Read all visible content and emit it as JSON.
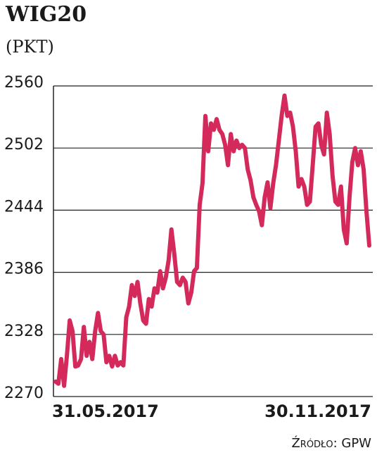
{
  "chart_data": {
    "type": "line",
    "title": "WIG20",
    "subtitle": "(PKT)",
    "source": "Źródło: GPW",
    "categories": [
      "31.05.2017",
      null,
      null,
      null,
      null,
      null,
      null,
      null,
      null,
      null,
      null,
      null,
      null,
      null,
      null,
      null,
      null,
      null,
      null,
      null,
      null,
      null,
      null,
      null,
      null,
      null,
      null,
      null,
      null,
      null,
      null,
      null,
      null,
      null,
      null,
      null,
      null,
      null,
      null,
      null,
      null,
      null,
      null,
      null,
      null,
      null,
      null,
      null,
      null,
      null,
      null,
      null,
      null,
      null,
      null,
      null,
      null,
      null,
      null,
      null,
      null,
      null,
      null,
      null,
      null,
      null,
      null,
      null,
      null,
      null,
      null,
      null,
      null,
      null,
      null,
      null,
      null,
      null,
      null,
      null,
      null,
      null,
      null,
      null,
      null,
      null,
      null,
      null,
      null,
      null,
      null,
      null,
      null,
      null,
      null,
      null,
      null,
      null,
      null,
      null,
      null,
      null,
      null,
      null,
      null,
      null,
      null,
      null,
      null,
      null,
      null,
      "30.11.2017"
    ],
    "values": [
      2284,
      2282,
      2305,
      2280,
      2308,
      2341,
      2331,
      2298,
      2299,
      2305,
      2335,
      2308,
      2321,
      2305,
      2331,
      2348,
      2331,
      2328,
      2302,
      2308,
      2298,
      2308,
      2299,
      2302,
      2299,
      2344,
      2354,
      2374,
      2364,
      2377,
      2357,
      2341,
      2338,
      2361,
      2354,
      2371,
      2367,
      2387,
      2371,
      2381,
      2397,
      2426,
      2403,
      2377,
      2374,
      2381,
      2377,
      2357,
      2367,
      2387,
      2390,
      2449,
      2469,
      2532,
      2499,
      2525,
      2519,
      2529,
      2519,
      2515,
      2505,
      2486,
      2515,
      2499,
      2509,
      2502,
      2505,
      2502,
      2482,
      2472,
      2456,
      2449,
      2443,
      2430,
      2456,
      2470,
      2446,
      2469,
      2486,
      2509,
      2532,
      2551,
      2532,
      2535,
      2522,
      2499,
      2466,
      2473,
      2466,
      2449,
      2452,
      2486,
      2522,
      2525,
      2505,
      2496,
      2535,
      2515,
      2476,
      2452,
      2449,
      2466,
      2426,
      2413,
      2456,
      2489,
      2502,
      2486,
      2499,
      2482,
      2443,
      2411
    ],
    "color": "#d42a5b",
    "ylim": [
      2270,
      2560
    ],
    "yticks": [
      2270,
      2328,
      2386,
      2444,
      2502,
      2560
    ],
    "grid": true
  }
}
